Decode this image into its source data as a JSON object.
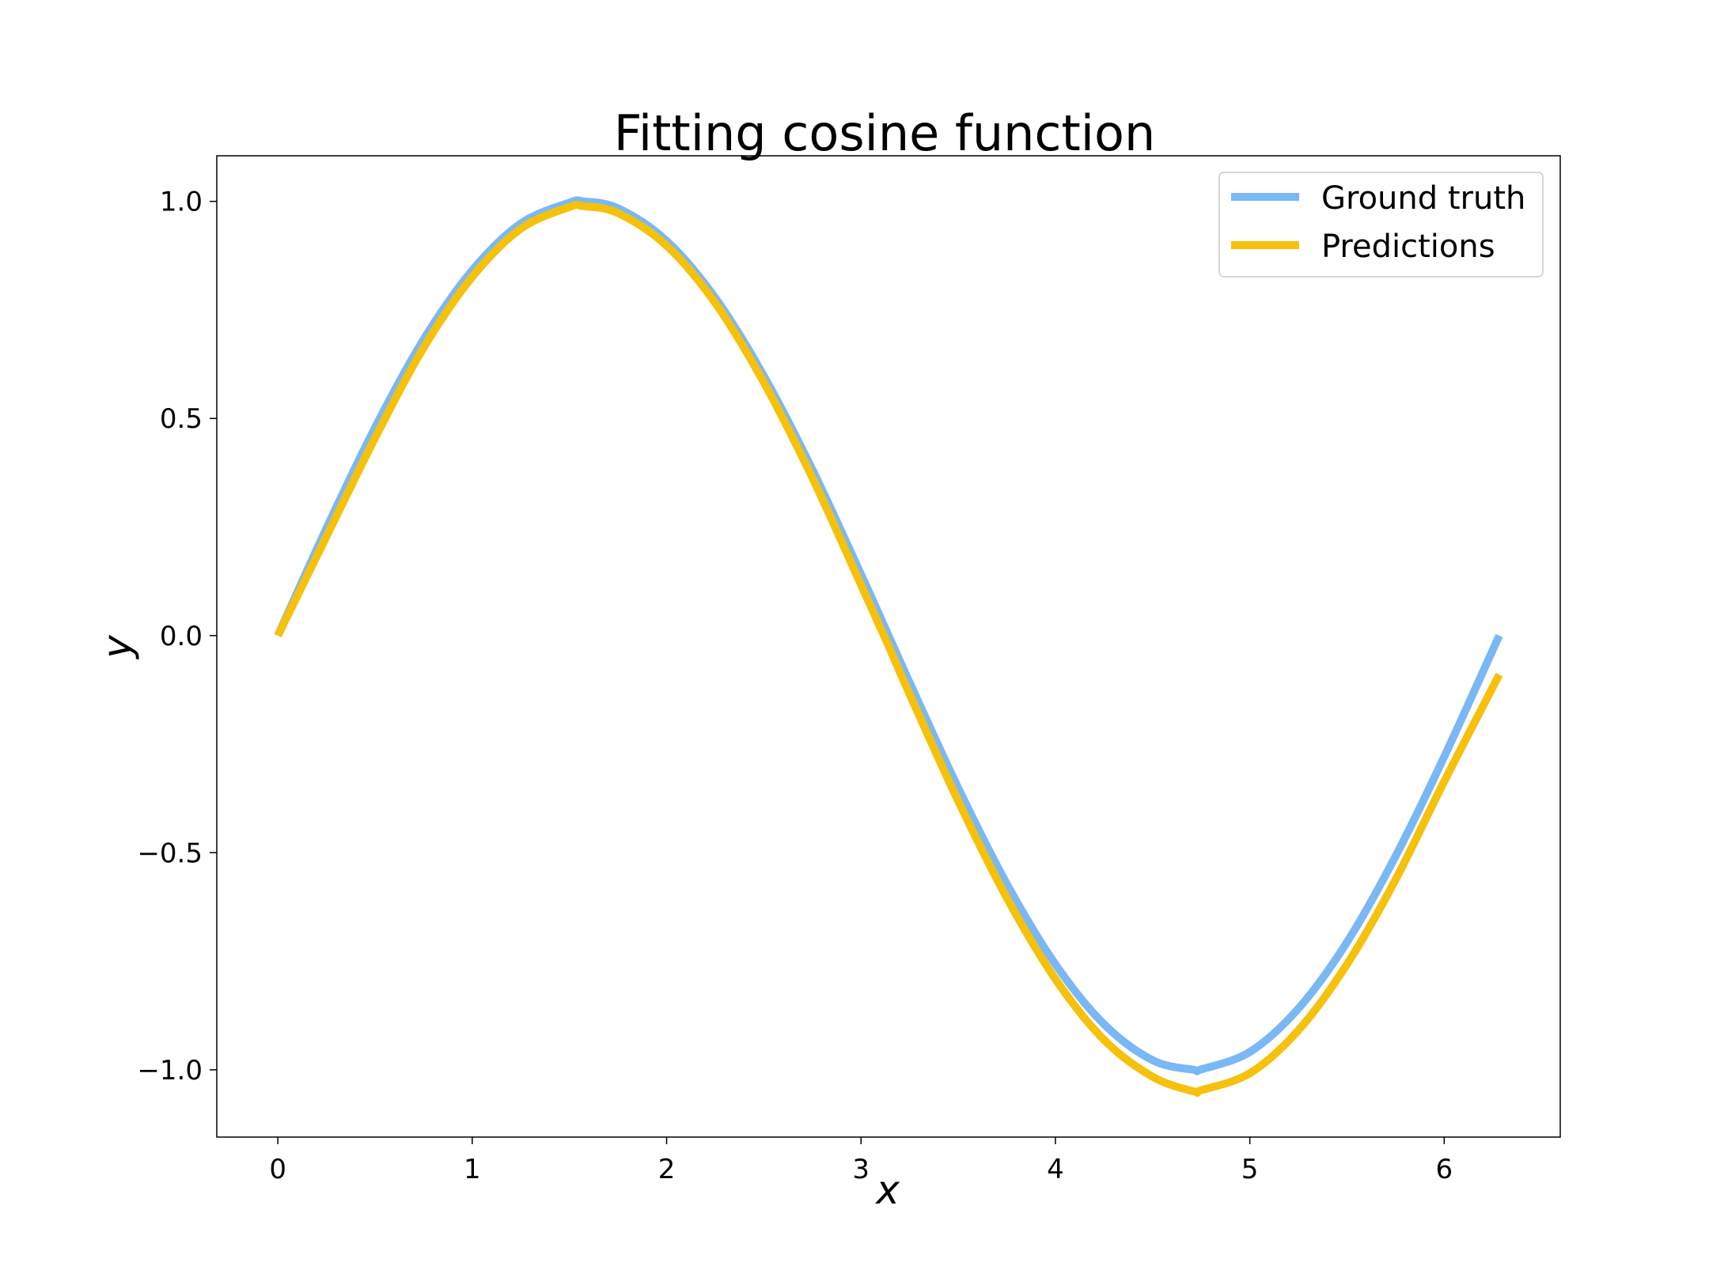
{
  "chart_data": {
    "type": "line",
    "title": "Fitting cosine function",
    "xlabel": "x",
    "ylabel": "y",
    "xlim": [
      -0.314,
      6.597
    ],
    "ylim": [
      -1.155,
      1.105
    ],
    "xticks": [
      0,
      1,
      2,
      3,
      4,
      5,
      6
    ],
    "xtick_labels": [
      "0",
      "1",
      "2",
      "3",
      "4",
      "5",
      "6"
    ],
    "yticks": [
      -1.0,
      -0.5,
      0.0,
      0.5,
      1.0
    ],
    "ytick_labels": [
      "−1.0",
      "−0.5",
      "0.0",
      "0.5",
      "1.0"
    ],
    "grid": false,
    "legend_position": "upper right",
    "legend_frame": true,
    "series": [
      {
        "name": "Ground truth",
        "color": "#7ab8f5",
        "x": [
          0.0,
          0.25,
          0.5,
          0.75,
          1.0,
          1.25,
          1.5,
          1.5708,
          1.75,
          2.0,
          2.25,
          2.5,
          2.75,
          3.0,
          3.1416,
          3.25,
          3.5,
          3.75,
          4.0,
          4.25,
          4.5,
          4.7124,
          4.75,
          5.0,
          5.25,
          5.5,
          5.75,
          6.0,
          6.2832
        ],
        "y": [
          0.0,
          0.247,
          0.479,
          0.682,
          0.841,
          0.949,
          0.997,
          1.0,
          0.984,
          0.909,
          0.778,
          0.598,
          0.382,
          0.141,
          0.0,
          -0.108,
          -0.351,
          -0.572,
          -0.757,
          -0.895,
          -0.978,
          -1.0,
          -0.999,
          -0.959,
          -0.859,
          -0.706,
          -0.508,
          -0.279,
          0.0
        ]
      },
      {
        "name": "Predictions",
        "color": "#f5c10c",
        "x": [
          0.0,
          0.25,
          0.5,
          0.75,
          1.0,
          1.25,
          1.5,
          1.5708,
          1.75,
          2.0,
          2.25,
          2.5,
          2.75,
          3.0,
          3.1416,
          3.25,
          3.5,
          3.75,
          4.0,
          4.25,
          4.5,
          4.7124,
          4.75,
          5.0,
          5.25,
          5.5,
          5.75,
          6.0,
          6.2832
        ],
        "y": [
          0.0,
          0.228,
          0.455,
          0.663,
          0.826,
          0.937,
          0.987,
          0.989,
          0.973,
          0.898,
          0.766,
          0.583,
          0.363,
          0.117,
          -0.024,
          -0.135,
          -0.381,
          -0.604,
          -0.791,
          -0.931,
          -1.016,
          -1.05,
          -1.047,
          -1.008,
          -0.909,
          -0.757,
          -0.562,
          -0.336,
          -0.09
        ]
      }
    ]
  }
}
